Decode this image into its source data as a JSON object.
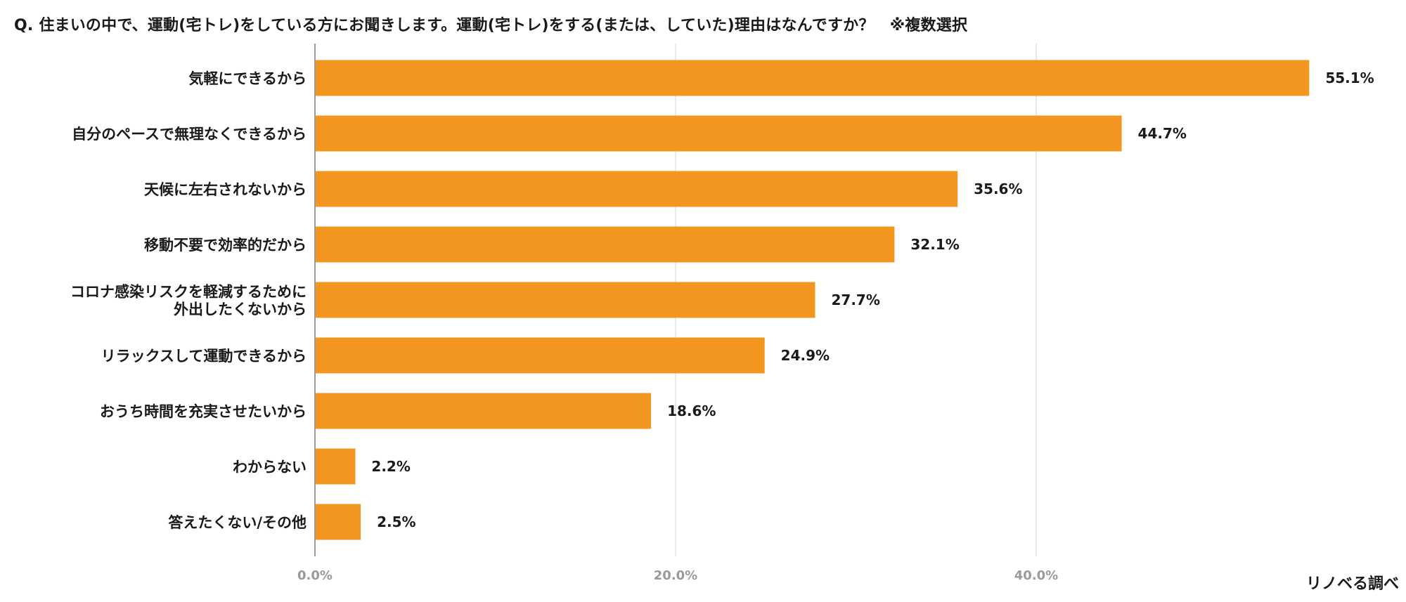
{
  "title": "Q. 住まいの中で、運動(宅トレ)をしている方にお聞きします。運動(宅トレ)をする(または、していた)理由はなんですか？　※複数選択",
  "credit": "リノベる調べ",
  "colors": {
    "bar": "#F2961F",
    "grid": "#e3e3e3",
    "axis": "#9a9a9a"
  },
  "chart_data": {
    "type": "bar",
    "orientation": "horizontal",
    "categories": [
      [
        "気軽にできるから"
      ],
      [
        "自分のペースで無理なくできるから"
      ],
      [
        "天候に左右されないから"
      ],
      [
        "移動不要で効率的だから"
      ],
      [
        "コロナ感染リスクを軽減するために",
        "外出したくないから"
      ],
      [
        "リラックスして運動できるから"
      ],
      [
        "おうち時間を充実させたいから"
      ],
      [
        "わからない"
      ],
      [
        "答えたくない/その他"
      ]
    ],
    "values": [
      55.1,
      44.7,
      35.6,
      32.1,
      27.7,
      24.9,
      18.6,
      2.2,
      2.5
    ],
    "value_labels": [
      "55.1%",
      "44.7%",
      "35.6%",
      "32.1%",
      "27.7%",
      "24.9%",
      "18.6%",
      "2.2%",
      "2.5%"
    ],
    "xlim": [
      0,
      60
    ],
    "ticks": [
      0,
      20,
      40
    ],
    "tick_labels": [
      "0.0%",
      "20.0%",
      "40.0%"
    ],
    "grid": true,
    "legend": "none"
  }
}
